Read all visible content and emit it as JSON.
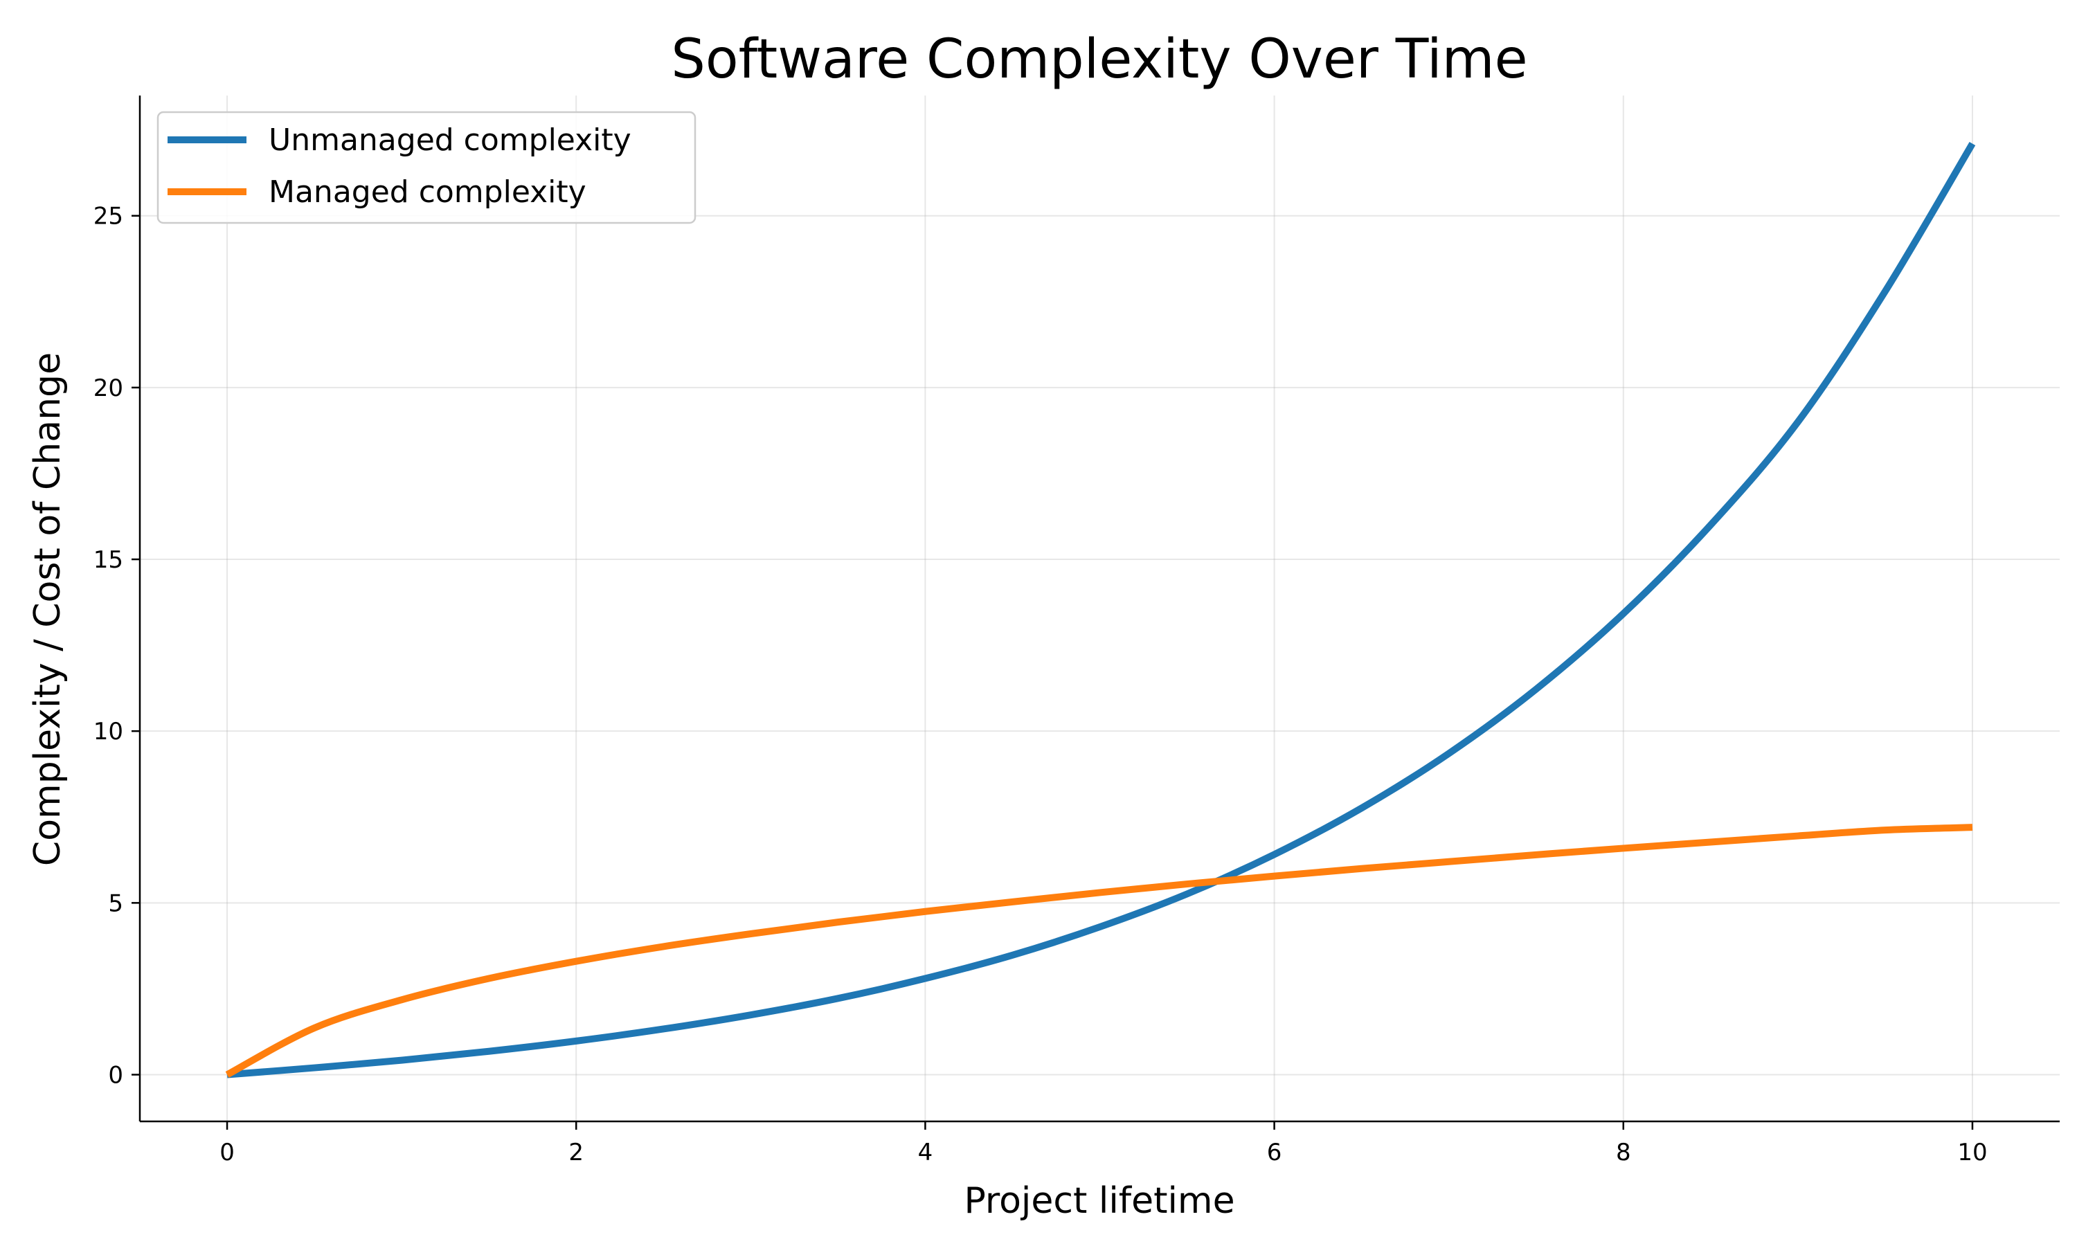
{
  "chart_data": {
    "type": "line",
    "title": "Software Complexity Over Time",
    "xlabel": "Project lifetime",
    "ylabel": "Complexity / Cost of Change",
    "xlim": [
      -0.5,
      10.5
    ],
    "ylim": [
      -1.36,
      28.5
    ],
    "x_ticks": [
      0,
      2,
      4,
      6,
      8,
      10
    ],
    "y_ticks": [
      0,
      5,
      10,
      15,
      20,
      25
    ],
    "grid": true,
    "legend_position": "top-left",
    "series": [
      {
        "name": "Unmanaged complexity",
        "color": "#1f77b4",
        "x": [
          0,
          0.5,
          1,
          1.5,
          2,
          2.5,
          3,
          3.5,
          4,
          4.5,
          5,
          5.5,
          6,
          6.5,
          7,
          7.5,
          8,
          8.5,
          9,
          9.5,
          10
        ],
        "y": [
          0,
          0.2,
          0.42,
          0.68,
          0.98,
          1.33,
          1.74,
          2.22,
          2.8,
          3.48,
          4.3,
          5.26,
          6.41,
          7.76,
          9.35,
          11.22,
          13.42,
          16.0,
          19.0,
          22.8,
          27.1
        ]
      },
      {
        "name": "Managed complexity",
        "color": "#ff7f0e",
        "x": [
          0,
          0.5,
          1,
          1.5,
          2,
          2.5,
          3,
          3.5,
          4,
          4.5,
          5,
          5.5,
          6,
          6.5,
          7,
          7.5,
          8,
          8.5,
          9,
          9.5,
          10
        ],
        "y": [
          0,
          1.36,
          2.18,
          2.8,
          3.3,
          3.73,
          4.1,
          4.44,
          4.75,
          5.03,
          5.3,
          5.55,
          5.78,
          6.0,
          6.2,
          6.4,
          6.59,
          6.77,
          6.95,
          7.12,
          7.2
        ]
      }
    ]
  }
}
